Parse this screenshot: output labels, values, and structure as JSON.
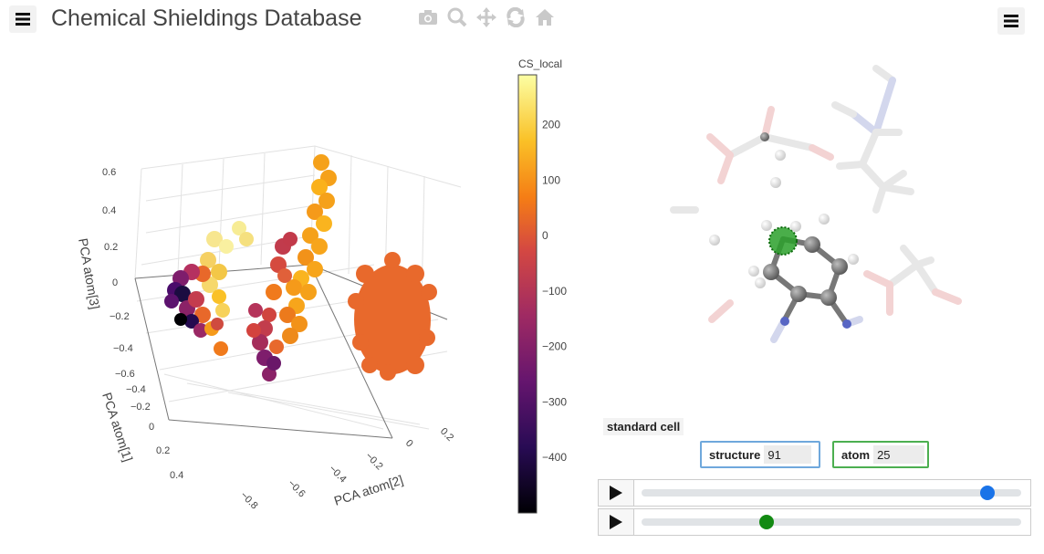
{
  "app": {
    "title": "Chemical Shieldings Database"
  },
  "menu": {
    "left_icon": "hamburger-menu-icon",
    "right_icon": "hamburger-menu-icon"
  },
  "modebar": {
    "icons": [
      "camera-icon",
      "zoom-icon",
      "pan-icon",
      "orbit-rotation-icon",
      "home-icon"
    ]
  },
  "plot": {
    "axis_x_title": "PCA atom[2]",
    "axis_y_title": "PCA atom[1]",
    "axis_z_title": "PCA atom[3]",
    "z_ticks": [
      "0.6",
      "0.4",
      "0.2",
      "0",
      "−0.2",
      "−0.4",
      "−0.6"
    ],
    "y_ticks": [
      "−0.4",
      "−0.2",
      "0",
      "0.2",
      "0.4"
    ],
    "x_ticks": [
      "−0.8",
      "−0.6",
      "−0.4",
      "−0.2",
      "0",
      "0.2"
    ],
    "colorbar": {
      "title": "CS_local",
      "ticks": [
        "200",
        "100",
        "0",
        "−100",
        "−200",
        "−300",
        "−400"
      ],
      "range": [
        -500,
        290
      ],
      "tick_values": [
        200,
        100,
        0,
        -100,
        -200,
        -300,
        -400
      ]
    }
  },
  "viewer": {
    "standard_cell_label": "standard cell",
    "structure_label": "structure",
    "structure_value": "91",
    "atom_label": "atom",
    "atom_value": "25"
  },
  "players": [
    {
      "icon": "play-icon",
      "position": 0.91,
      "color": "#1a73e8"
    },
    {
      "icon": "play-icon",
      "position": 0.33,
      "color": "#138a13"
    }
  ]
}
